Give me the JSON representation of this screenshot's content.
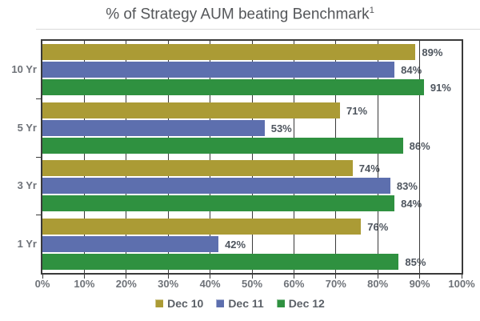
{
  "title": {
    "text": "% of Strategy AUM beating Benchmark",
    "footnote_marker": "1"
  },
  "chart_data": {
    "type": "bar",
    "orientation": "horizontal",
    "title": "% of Strategy AUM beating Benchmark¹",
    "categories": [
      "10 Yr",
      "5 Yr",
      "3 Yr",
      "1 Yr"
    ],
    "series": [
      {
        "name": "Dec 10",
        "color": "#ab9b35",
        "values": [
          89,
          71,
          74,
          76
        ]
      },
      {
        "name": "Dec 11",
        "color": "#5d6fae",
        "values": [
          84,
          53,
          83,
          42
        ]
      },
      {
        "name": "Dec 12",
        "color": "#2f9140",
        "values": [
          91,
          86,
          84,
          85
        ]
      }
    ],
    "value_label_suffix": "%",
    "xlim": [
      0,
      100
    ],
    "x_ticks": [
      "0%",
      "10%",
      "20%",
      "30%",
      "40%",
      "50%",
      "60%",
      "70%",
      "80%",
      "90%",
      "100%"
    ],
    "grid": "vertical lines every 10%",
    "legend_position": "bottom"
  },
  "legend": {
    "items": [
      {
        "label": "Dec 10",
        "color": "#ab9b35"
      },
      {
        "label": "Dec 11",
        "color": "#5d6fae"
      },
      {
        "label": "Dec 12",
        "color": "#2f9140"
      }
    ]
  },
  "colors": {
    "background": "#ffffff",
    "plot_border": "#3a3a3a",
    "gridline": "#3a3a3a",
    "title_text": "#545659",
    "axis_text": "#6e7278",
    "value_text": "#4e555e",
    "legend_text": "#5b6067"
  }
}
